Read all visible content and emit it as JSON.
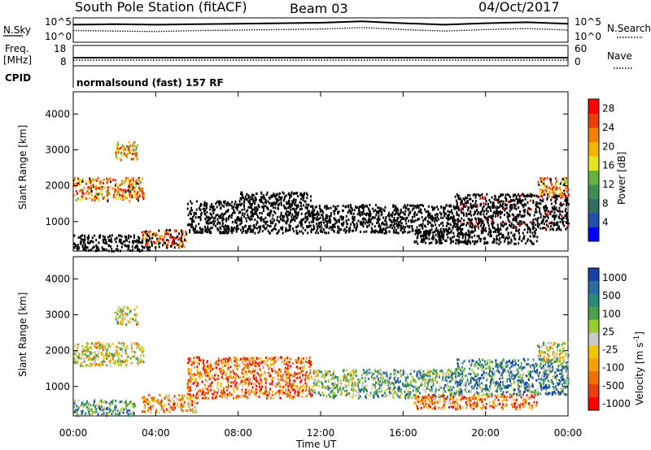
{
  "header": {
    "title": "South Pole Station (fitACF)",
    "beam": "Beam 03",
    "date": "04/Oct/2017"
  },
  "colors": {
    "black": "#000000",
    "power_scale": [
      "#0000ff",
      "#2050a8",
      "#2f6f64",
      "#3f8f55",
      "#66b044",
      "#e6e620",
      "#f4b400",
      "#f08000",
      "#e84000",
      "#ff0000"
    ],
    "velocity_scale": [
      "#1a3fa8",
      "#2a6aa0",
      "#2d8a78",
      "#4aa04a",
      "#9acd32",
      "#c8c8c8",
      "#f5c400",
      "#f5a000",
      "#f07000",
      "#e84010",
      "#ff0000"
    ],
    "ground_scatter": "#b4b4b4"
  },
  "chart_data": [
    {
      "type": "line",
      "panel": "noise",
      "left_label": "N.Sky",
      "right_label": "N.Search",
      "yticks_left": [
        "10^5",
        "10^0"
      ],
      "yticks_right": [
        "10^5",
        "10^0"
      ],
      "x": [
        "00:00",
        "02:00",
        "04:00",
        "06:00",
        "08:00",
        "10:00",
        "12:00",
        "14:00",
        "16:00",
        "18:00",
        "20:00",
        "22:00",
        "24:00"
      ],
      "series": [
        {
          "values": [
            3.6,
            3.7,
            3.6,
            3.7,
            3.8,
            3.9,
            4.0,
            4.3,
            3.9,
            3.6,
            3.9,
            4.1,
            3.8
          ]
        },
        {
          "values": [
            2.4,
            2.3,
            2.2,
            2.4,
            2.5,
            2.6,
            2.7,
            3.0,
            2.6,
            2.3,
            2.6,
            2.8,
            2.5
          ]
        }
      ],
      "ylim": [
        0,
        5
      ]
    },
    {
      "type": "line",
      "panel": "frequency",
      "left_label_top": "Freq.",
      "left_label_bottom": "[MHz]",
      "right_label": "Nave",
      "yticks_left": [
        "18",
        "8"
      ],
      "yticks_right": [
        "60",
        "0"
      ],
      "ylim": [
        8,
        18
      ],
      "series": [
        {
          "values": [
            12,
            12,
            12,
            12,
            12,
            12,
            12,
            12,
            12,
            12,
            12,
            12,
            12
          ]
        }
      ]
    },
    {
      "type": "heatmap",
      "panel": "power",
      "cpid_label": "CPID",
      "cpid_text": "normalsound (fast) 157 RF",
      "ylabel": "Slant Range [km]",
      "yticks": [
        "4000",
        "3000",
        "2000",
        "1000"
      ],
      "ylim": [
        180,
        4620
      ],
      "xlim": [
        0,
        24
      ],
      "colorbar_label": "Power [dB]",
      "colorbar_ticks": [
        "28",
        "24",
        "20",
        "16",
        "12",
        "8",
        "4"
      ],
      "colorbar_range": [
        0,
        30
      ],
      "regions": [
        {
          "t0": 0.0,
          "t1": 3.4,
          "r0": 1600,
          "r1": 2250,
          "level": 7
        },
        {
          "t0": 2.0,
          "t1": 3.1,
          "r0": 2750,
          "r1": 3250,
          "level": 6
        },
        {
          "t0": 0.0,
          "t1": 3.8,
          "r0": 200,
          "r1": 650,
          "level": 14
        },
        {
          "t0": 3.3,
          "t1": 5.5,
          "r0": 300,
          "r1": 800,
          "level": 9
        },
        {
          "t0": 5.5,
          "t1": 8.0,
          "r0": 700,
          "r1": 1600,
          "level": 22
        },
        {
          "t0": 8.0,
          "t1": 11.5,
          "r0": 700,
          "r1": 1850,
          "level": 27
        },
        {
          "t0": 11.5,
          "t1": 14.5,
          "r0": 700,
          "r1": 1500,
          "level": 17
        },
        {
          "t0": 14.5,
          "t1": 18.5,
          "r0": 700,
          "r1": 1500,
          "level": 20
        },
        {
          "t0": 16.5,
          "t1": 22.5,
          "r0": 400,
          "r1": 800,
          "level": 19
        },
        {
          "t0": 18.5,
          "t1": 24.0,
          "r0": 800,
          "r1": 1800,
          "level": 12
        },
        {
          "t0": 22.5,
          "t1": 24.0,
          "r0": 1700,
          "r1": 2250,
          "level": 7
        }
      ]
    },
    {
      "type": "heatmap",
      "panel": "velocity",
      "ylabel": "Slant Range [km]",
      "yticks": [
        "4000",
        "3000",
        "2000",
        "1000"
      ],
      "ylim": [
        180,
        4620
      ],
      "xlim": [
        0,
        24
      ],
      "xticks": [
        "00:00",
        "04:00",
        "08:00",
        "12:00",
        "16:00",
        "20:00",
        "00:00"
      ],
      "xlabel": "Time UT",
      "colorbar_label": "Velocity [m s",
      "colorbar_label_sup": "-1",
      "colorbar_label_end": "]",
      "colorbar_ticks": [
        "1000",
        "500",
        "100",
        "25",
        "-25",
        "-100",
        "-500",
        "-1000"
      ],
      "regions": [
        {
          "t0": 0.0,
          "t1": 3.4,
          "r0": 1600,
          "r1": 2250,
          "level": 5
        },
        {
          "t0": 2.0,
          "t1": 3.1,
          "r0": 2750,
          "r1": 3250,
          "level": 5
        },
        {
          "t0": 0.0,
          "t1": 3.0,
          "r0": 200,
          "r1": 650,
          "level": 3
        },
        {
          "t0": 3.3,
          "t1": 6.0,
          "r0": 300,
          "r1": 800,
          "level": 7
        },
        {
          "t0": 5.5,
          "t1": 11.5,
          "r0": 700,
          "r1": 1850,
          "level": 8
        },
        {
          "t0": 11.5,
          "t1": 14.0,
          "r0": 700,
          "r1": 1500,
          "level": 4
        },
        {
          "t0": 14.0,
          "t1": 18.5,
          "r0": 700,
          "r1": 1500,
          "level": 3
        },
        {
          "t0": 16.5,
          "t1": 22.5,
          "r0": 400,
          "r1": 800,
          "level": 8
        },
        {
          "t0": 18.5,
          "t1": 24.0,
          "r0": 800,
          "r1": 1800,
          "level": 2
        },
        {
          "t0": 22.5,
          "t1": 24.0,
          "r0": 1700,
          "r1": 2250,
          "level": 5
        }
      ]
    }
  ]
}
